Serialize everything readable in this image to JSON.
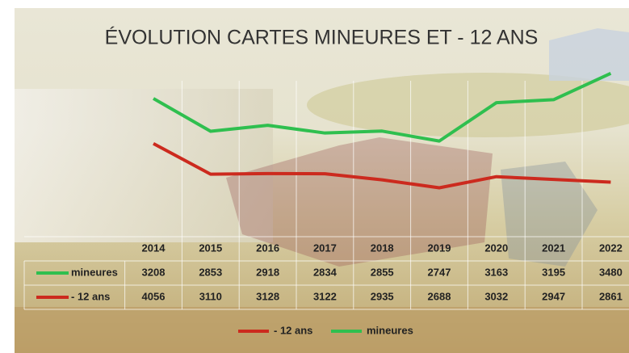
{
  "chart_data": {
    "type": "line",
    "title": "ÉVOLUTION CARTES MINEURES ET - 12 ANS",
    "categories": [
      "2014",
      "2015",
      "2016",
      "2017",
      "2018",
      "2019",
      "2020",
      "2021",
      "2022"
    ],
    "series": [
      {
        "name": "mineures",
        "color": "#2fbf4f",
        "values": [
          3208,
          2853,
          2918,
          2834,
          2855,
          2747,
          3163,
          3195,
          3480
        ]
      },
      {
        "name": "- 12 ans",
        "color": "#cc2a1e",
        "axis": "y2",
        "values": [
          4056,
          3110,
          3128,
          3122,
          2935,
          2688,
          3032,
          2947,
          2861
        ]
      }
    ],
    "ylim": [
      2000,
      3400
    ],
    "y2lim": [
      2000,
      6000
    ]
  }
}
